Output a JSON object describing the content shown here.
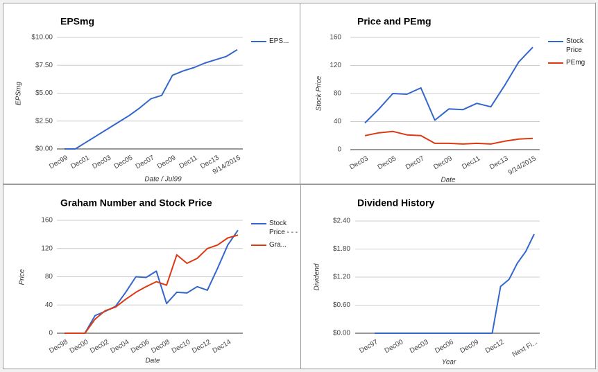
{
  "chart_data": [
    {
      "type": "line",
      "title": "EPSmg",
      "xlabel": "Date / Jul99",
      "ylabel": "EPSmg",
      "categories": [
        "Dec99",
        null,
        "Dec01",
        null,
        "Dec03",
        null,
        "Dec05",
        null,
        "Dec07",
        null,
        "Dec09",
        null,
        "Dec11",
        null,
        "Dec13",
        null,
        "9/14/2015"
      ],
      "series": [
        {
          "name": "EPS...",
          "color": "#3366cc",
          "values": [
            0,
            0,
            0.6,
            1.2,
            1.8,
            2.4,
            3.0,
            3.7,
            4.5,
            4.8,
            6.6,
            7.0,
            7.3,
            7.7,
            8.0,
            8.3,
            8.9
          ]
        }
      ],
      "ylim": [
        0,
        10
      ],
      "yticks": [
        {
          "value": 0,
          "label": "$0.00"
        },
        {
          "value": 2.5,
          "label": "$2.50"
        },
        {
          "value": 5,
          "label": "$5.00"
        },
        {
          "value": 7.5,
          "label": "$7.50"
        },
        {
          "value": 10,
          "label": "$10.00"
        }
      ],
      "grid": true,
      "legend": "right"
    },
    {
      "type": "line",
      "title": "Price and PEmg",
      "xlabel": "Date",
      "ylabel": "Stock Price",
      "categories": [
        "Dec03",
        null,
        "Dec05",
        null,
        "Dec07",
        null,
        "Dec09",
        null,
        "Dec11",
        null,
        "Dec13",
        null,
        "9/14/2015"
      ],
      "series": [
        {
          "name": "Stock Price",
          "color": "#3366cc",
          "values": [
            38,
            58,
            80,
            79,
            88,
            42,
            58,
            57,
            66,
            61,
            92,
            125,
            146
          ]
        },
        {
          "name": "PEmg",
          "color": "#dc3912",
          "values": [
            20,
            24,
            26,
            21,
            20,
            9,
            9,
            8,
            9,
            8,
            12,
            15,
            16
          ]
        }
      ],
      "ylim": [
        0,
        160
      ],
      "yticks": [
        0,
        40,
        80,
        120,
        160
      ],
      "grid": true,
      "legend": "right"
    },
    {
      "type": "line",
      "title": "Graham Number and Stock Price",
      "xlabel": "Date",
      "ylabel": "Price",
      "categories": [
        "Dec98",
        null,
        "Dec00",
        null,
        "Dec02",
        null,
        "Dec04",
        null,
        "Dec06",
        null,
        "Dec08",
        null,
        "Dec10",
        null,
        "Dec12",
        null,
        "Dec14",
        null
      ],
      "series": [
        {
          "name": "Stock Price - - -",
          "color": "#3366cc",
          "values": [
            0,
            0,
            0,
            25,
            31,
            38,
            58,
            80,
            79,
            88,
            42,
            58,
            57,
            66,
            61,
            92,
            125,
            146
          ]
        },
        {
          "name": "Gra...",
          "color": "#dc3912",
          "values": [
            0,
            0,
            0,
            20,
            32,
            37,
            48,
            58,
            66,
            73,
            68,
            111,
            99,
            106,
            120,
            125,
            135,
            139
          ]
        }
      ],
      "ylim": [
        0,
        160
      ],
      "yticks": [
        0,
        40,
        80,
        120,
        160
      ],
      "grid": true,
      "legend": "right"
    },
    {
      "type": "line",
      "title": "Dividend History",
      "xlabel": "Year",
      "ylabel": "Dividend",
      "categories": [
        "Dec97",
        null,
        null,
        "Dec00",
        null,
        null,
        "Dec03",
        null,
        null,
        "Dec06",
        null,
        null,
        "Dec09",
        null,
        null,
        "Dec12",
        null,
        null,
        null,
        "Next Fi..."
      ],
      "values": [
        0,
        0,
        0,
        0,
        0,
        0,
        0,
        0,
        0,
        0,
        0,
        0,
        0,
        0,
        0,
        1.0,
        1.15,
        1.5,
        1.75,
        2.12
      ],
      "color": "#3366cc",
      "ylim": [
        0,
        2.4
      ],
      "yticks": [
        {
          "value": 0,
          "label": "$0.00"
        },
        {
          "value": 0.6,
          "label": "$0.60"
        },
        {
          "value": 1.2,
          "label": "$1.20"
        },
        {
          "value": 1.8,
          "label": "$1.80"
        },
        {
          "value": 2.4,
          "label": "$2.40"
        }
      ],
      "grid": true
    }
  ]
}
